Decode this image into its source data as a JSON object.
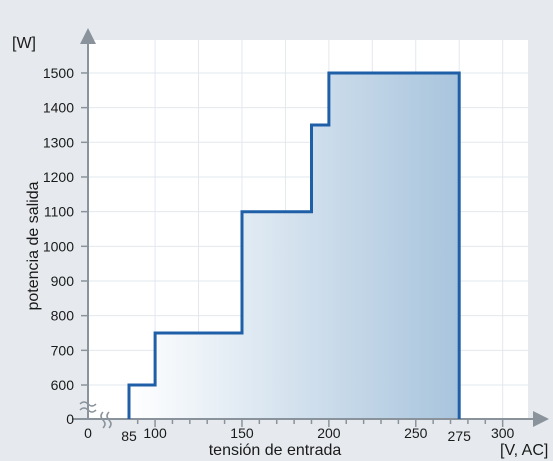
{
  "colors": {
    "background": "#e6eaee",
    "plot_area": "#ffffff",
    "grid": "#e3e8ee",
    "axis": "#8a939b",
    "series_line": "#1f5fa8",
    "fill_start": "#ffffff",
    "fill_end": "#a8c4dd",
    "text": "#1a1a1a"
  },
  "chart_data": {
    "type": "area",
    "title": "",
    "xlabel": "tensión de entrada",
    "ylabel": "potencia de salida",
    "x_unit": "[V, AC]",
    "y_unit": "[W]",
    "xlim": [
      0,
      300
    ],
    "ylim": [
      0,
      1500
    ],
    "x_axis_break": true,
    "y_axis_break": true,
    "x_ticks": [
      "0",
      "85",
      "100",
      "150",
      "200",
      "250",
      "275",
      "300"
    ],
    "y_ticks": [
      "0",
      "600",
      "700",
      "800",
      "900",
      "1000",
      "1100",
      "1200",
      "1300",
      "1400",
      "1500"
    ],
    "grid": true,
    "series": [
      {
        "points": [
          {
            "x": 85,
            "y": 0
          },
          {
            "x": 85,
            "y": 600
          },
          {
            "x": 100,
            "y": 600
          },
          {
            "x": 100,
            "y": 750
          },
          {
            "x": 150,
            "y": 750
          },
          {
            "x": 150,
            "y": 1100
          },
          {
            "x": 190,
            "y": 1100
          },
          {
            "x": 190,
            "y": 1350
          },
          {
            "x": 200,
            "y": 1350
          },
          {
            "x": 200,
            "y": 1500
          },
          {
            "x": 275,
            "y": 1500
          },
          {
            "x": 275,
            "y": 0
          }
        ]
      }
    ]
  }
}
